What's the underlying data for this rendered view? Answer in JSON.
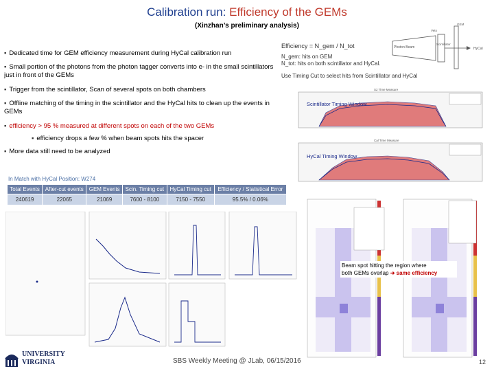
{
  "header": {
    "title_part1": "Calibration run: ",
    "title_part2": "Efficiency of the GEMs",
    "subtitle": "(Xinzhan’s preliminary analysis)"
  },
  "bullets": [
    "Dedicated time for GEM efficiency measurement during HyCal calibration run",
    "Small portion of the photons from the photon tagger converts into e- in the small scintillators just in front of the GEMs",
    "Trigger from the scintillator, Scan of several spots on both chambers",
    "Offline matching of the timing in the scintillator and the HyCal hits to clean up the events in GEMs",
    "efficiency > 95 % measured at different spots on each of the two GEMs",
    "efficiency drops a few % when beam spots hits the spacer",
    "More data still need to be analyzed"
  ],
  "definitions": {
    "line1": "Efficiency = N_gem / N_tot",
    "line2": "N_gem: hits on GEM",
    "line3": "N_tot: hits on both scintillator and HyCal.",
    "line4": "Use Timing Cut to select hits from Scintillator and HyCal"
  },
  "detector_diagram": {
    "photon_beam": "Photon Beam",
    "veto": "Veto",
    "scintillator": "Scintillator",
    "hycal": "HyCal",
    "gem": "GEM"
  },
  "timing_plots": {
    "scint_label": "Scintillator Timing Window",
    "hycal_label": "HyCal Timing Window",
    "scint_axis_title": "S2 Time Measure",
    "hycal_axis_title": "Cal Time Measure"
  },
  "match_table": {
    "title": "In Match with HyCal Position: W274",
    "headers": [
      "Total Events",
      "After-cut events",
      "GEM Events",
      "Scin. Timing cut",
      "HyCal Timing cut",
      "Efficiency / Statistical Error"
    ],
    "row": [
      "240619",
      "22065",
      "21069",
      "7600 - 8100",
      "7150 - 7550",
      "95.5% / 0.06%"
    ]
  },
  "annotation": {
    "line1": "Beam spot hitting the region where",
    "line2": "both GEMs overlap",
    "highlight": "same efficiency"
  },
  "footer": {
    "meeting": "SBS Weekly  Meeting @ JLab, 06/15/2016",
    "page": "12"
  },
  "logo": {
    "line1": "UNIVERSITY",
    "line2": "VIRGINIA"
  },
  "colors": {
    "title_blue": "#1f3f8f",
    "title_red": "#c0392b",
    "accent_red": "#c00000",
    "table_header": "#6b7fa6",
    "table_cell": "#c9d4e6"
  }
}
